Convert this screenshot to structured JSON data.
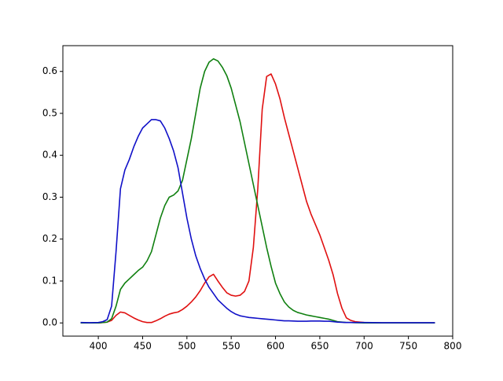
{
  "chart_data": {
    "type": "line",
    "x": [
      380,
      390,
      400,
      405,
      410,
      415,
      420,
      425,
      430,
      435,
      440,
      445,
      450,
      455,
      460,
      465,
      470,
      475,
      480,
      485,
      490,
      495,
      500,
      505,
      510,
      515,
      520,
      525,
      530,
      535,
      540,
      545,
      550,
      555,
      560,
      565,
      570,
      575,
      580,
      585,
      590,
      595,
      600,
      605,
      610,
      615,
      620,
      625,
      630,
      635,
      640,
      645,
      650,
      655,
      660,
      665,
      670,
      675,
      680,
      685,
      690,
      700,
      720,
      740,
      760,
      780
    ],
    "series": [
      {
        "color": "#e01010",
        "values": [
          0,
          0,
          0,
          0.001,
          0.002,
          0.006,
          0.018,
          0.026,
          0.024,
          0.018,
          0.012,
          0.007,
          0.003,
          0.001,
          0.001,
          0.005,
          0.01,
          0.016,
          0.021,
          0.024,
          0.026,
          0.032,
          0.04,
          0.05,
          0.062,
          0.077,
          0.095,
          0.11,
          0.116,
          0.1,
          0.085,
          0.072,
          0.066,
          0.064,
          0.066,
          0.075,
          0.1,
          0.18,
          0.32,
          0.51,
          0.588,
          0.594,
          0.57,
          0.535,
          0.49,
          0.45,
          0.41,
          0.37,
          0.33,
          0.29,
          0.26,
          0.235,
          0.21,
          0.18,
          0.15,
          0.115,
          0.07,
          0.035,
          0.012,
          0.006,
          0.003,
          0.001,
          0,
          0,
          0,
          0
        ]
      },
      {
        "color": "#108010",
        "values": [
          0,
          0,
          0,
          0.001,
          0.002,
          0.01,
          0.04,
          0.08,
          0.095,
          0.105,
          0.115,
          0.125,
          0.133,
          0.148,
          0.17,
          0.21,
          0.25,
          0.28,
          0.3,
          0.305,
          0.315,
          0.34,
          0.39,
          0.44,
          0.5,
          0.56,
          0.6,
          0.622,
          0.63,
          0.625,
          0.61,
          0.59,
          0.56,
          0.52,
          0.48,
          0.43,
          0.38,
          0.33,
          0.28,
          0.23,
          0.18,
          0.135,
          0.095,
          0.07,
          0.05,
          0.038,
          0.03,
          0.025,
          0.022,
          0.019,
          0.017,
          0.015,
          0.013,
          0.011,
          0.009,
          0.006,
          0.003,
          0.002,
          0.001,
          0.001,
          0.0005,
          0,
          0,
          0,
          0,
          0
        ]
      },
      {
        "color": "#1010c8",
        "values": [
          0.001,
          0.0005,
          0.001,
          0.003,
          0.008,
          0.04,
          0.17,
          0.32,
          0.365,
          0.39,
          0.42,
          0.445,
          0.465,
          0.475,
          0.485,
          0.485,
          0.482,
          0.465,
          0.44,
          0.41,
          0.37,
          0.31,
          0.25,
          0.2,
          0.16,
          0.13,
          0.105,
          0.085,
          0.07,
          0.055,
          0.045,
          0.035,
          0.027,
          0.021,
          0.017,
          0.015,
          0.013,
          0.012,
          0.011,
          0.01,
          0.009,
          0.008,
          0.007,
          0.006,
          0.005,
          0.005,
          0.0045,
          0.004,
          0.004,
          0.004,
          0.0045,
          0.0045,
          0.0045,
          0.004,
          0.004,
          0.003,
          0.002,
          0.0015,
          0.001,
          0.001,
          0.001,
          0.001,
          0.0005,
          0.0005,
          0.0005,
          0.0005
        ]
      }
    ],
    "xlim": [
      360,
      800
    ],
    "xticks": [
      400,
      450,
      500,
      550,
      600,
      650,
      700,
      750,
      800
    ],
    "ylim": [
      -0.0315,
      0.6615
    ],
    "yticks": [
      {
        "value": 0,
        "label": "0.0"
      },
      {
        "value": 0.1,
        "label": "0.1"
      },
      {
        "value": 0.2,
        "label": "0.2"
      },
      {
        "value": 0.3,
        "label": "0.3"
      },
      {
        "value": 0.4,
        "label": "0.4"
      },
      {
        "value": 0.5,
        "label": "0.5"
      },
      {
        "value": 0.6,
        "label": "0.6"
      }
    ]
  }
}
